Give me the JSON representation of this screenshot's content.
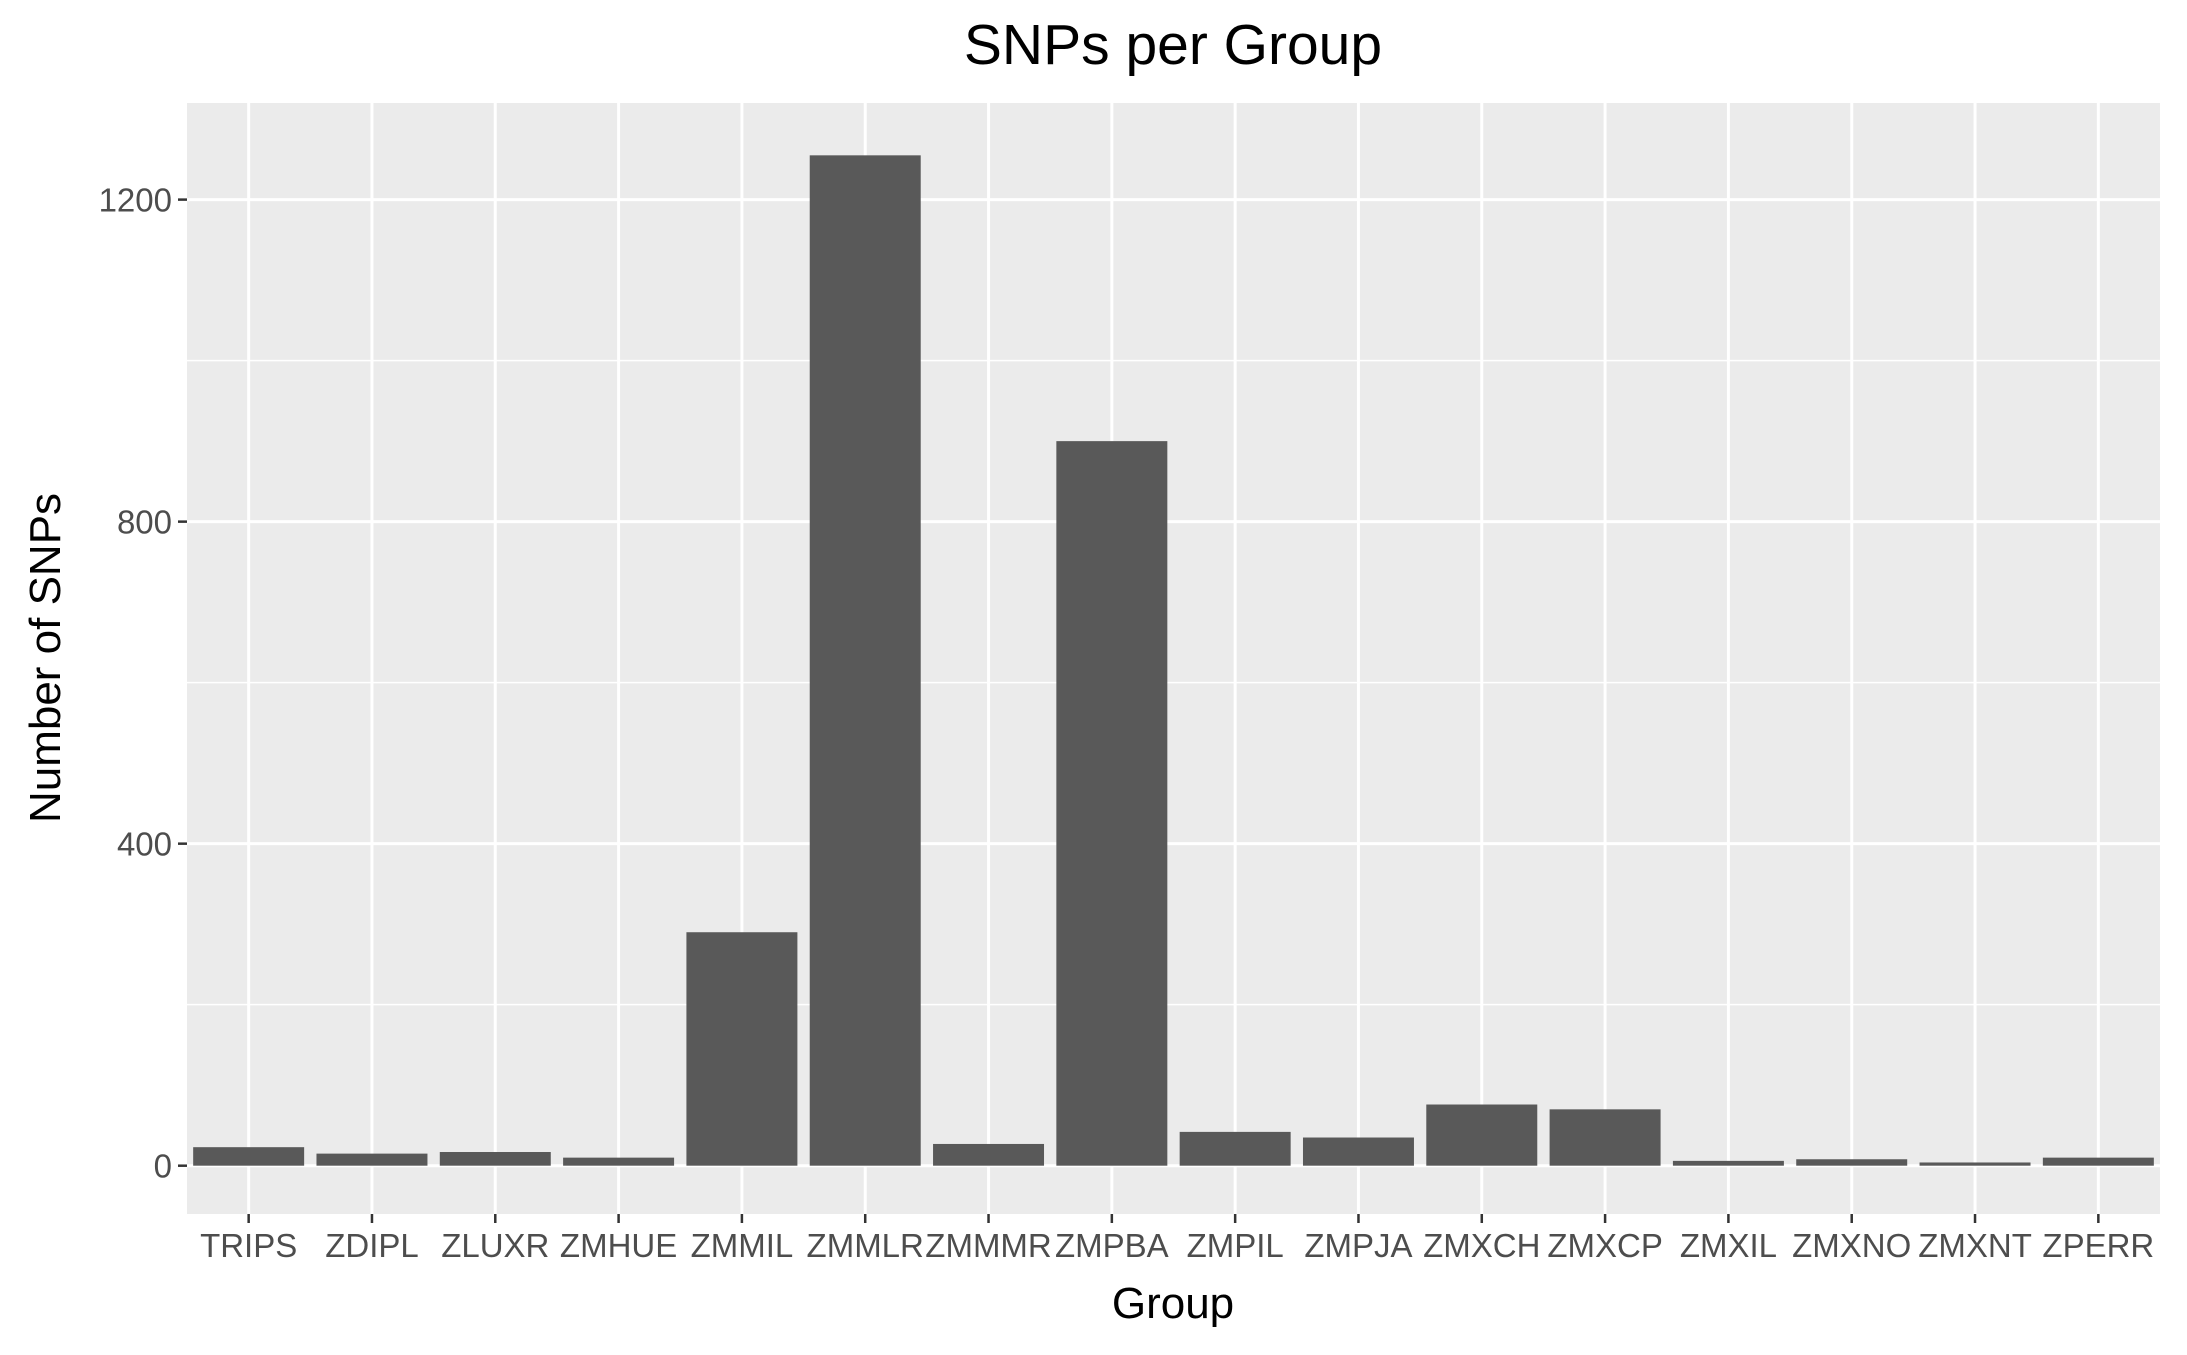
{
  "chart_data": {
    "type": "bar",
    "title": "SNPs per Group",
    "xlabel": "Group",
    "ylabel": "Number of SNPs",
    "categories": [
      "TRIPS",
      "ZDIPL",
      "ZLUXR",
      "ZMHUE",
      "ZMMIL",
      "ZMMLR",
      "ZMMMR",
      "ZMPBA",
      "ZMPIL",
      "ZMPJA",
      "ZMXCH",
      "ZMXCP",
      "ZMXIL",
      "ZMXNO",
      "ZMXNT",
      "ZPERR"
    ],
    "values": [
      23,
      15,
      17,
      10,
      290,
      1255,
      27,
      900,
      42,
      35,
      76,
      70,
      6,
      8,
      4,
      10
    ],
    "ylim": [
      -60,
      1320
    ],
    "yticks": [
      0,
      400,
      800,
      1200
    ],
    "grid": true,
    "legend": "none",
    "colors": {
      "bar": "#595959",
      "panel": "#EBEBEB",
      "grid": "#FFFFFF"
    }
  }
}
